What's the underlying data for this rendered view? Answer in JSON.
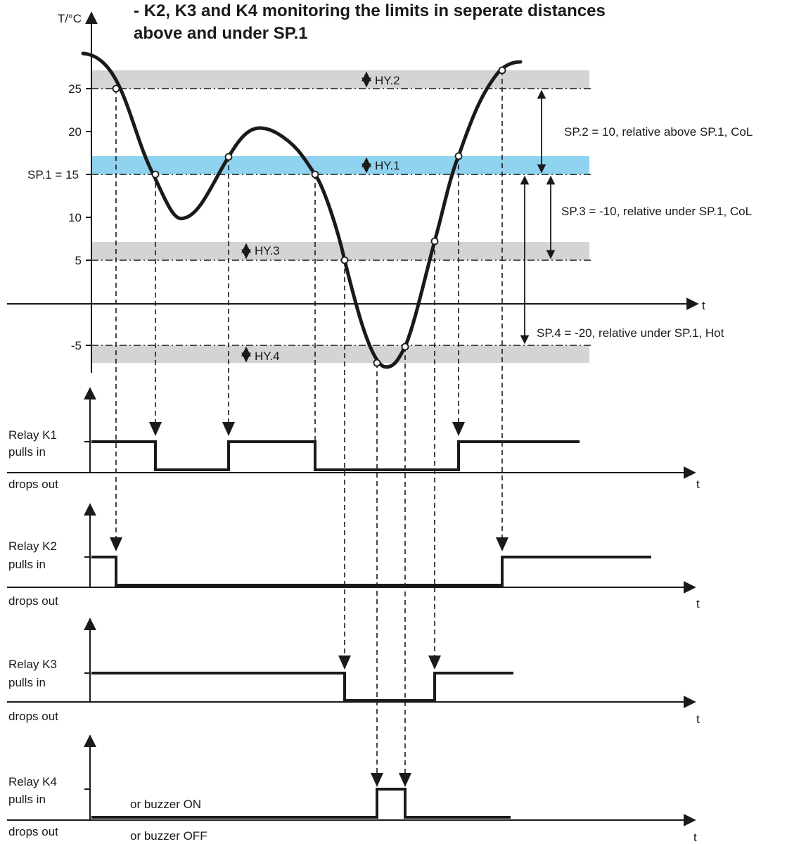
{
  "title": {
    "line1": "- K2, K3 and K4 monitoring the limits in seperate distances",
    "line2": "above and under SP.1"
  },
  "axis": {
    "y_unit": "T/°C",
    "t": "t"
  },
  "y_ticks": [
    {
      "value": 25,
      "label": "25"
    },
    {
      "value": 20,
      "label": "20"
    },
    {
      "value": 15,
      "label": "SP.1 = 15"
    },
    {
      "value": 10,
      "label": "10"
    },
    {
      "value": 5,
      "label": "5"
    },
    {
      "value": -5,
      "label": "-5"
    }
  ],
  "bands": [
    {
      "label": "HY.2",
      "from": 25,
      "to": 27,
      "color": "#d4d4d4"
    },
    {
      "label": "HY.1",
      "from": 15,
      "to": 17,
      "color": "#8fd3f0"
    },
    {
      "label": "HY.3",
      "from": 5,
      "to": 7,
      "color": "#d4d4d4"
    },
    {
      "label": "HY.4",
      "from": -7,
      "to": -5,
      "color": "#d4d4d4"
    }
  ],
  "annotations": {
    "sp2": "SP.2 = 10, relative above SP.1, CoL",
    "sp3": "SP.3 = -10, relative under SP.1, CoL",
    "sp4": "SP.4 = -20, relative under SP.1, Hot"
  },
  "relays": [
    {
      "name": "Relay K1",
      "on_label": "pulls in",
      "off_label": "drops out",
      "on_extra": "",
      "off_extra": ""
    },
    {
      "name": "Relay K2",
      "on_label": "pulls in",
      "off_label": "drops out",
      "on_extra": "",
      "off_extra": ""
    },
    {
      "name": "Relay K3",
      "on_label": "pulls in",
      "off_label": "drops out",
      "on_extra": "",
      "off_extra": ""
    },
    {
      "name": "Relay K4",
      "on_label": "pulls in",
      "off_label": "drops out",
      "on_extra": "or buzzer ON",
      "off_extra": "or buzzer OFF"
    }
  ],
  "colors": {
    "line": "#1a1a1a",
    "grey_band": "#d4d4d4",
    "blue_band": "#8fd3f0"
  }
}
